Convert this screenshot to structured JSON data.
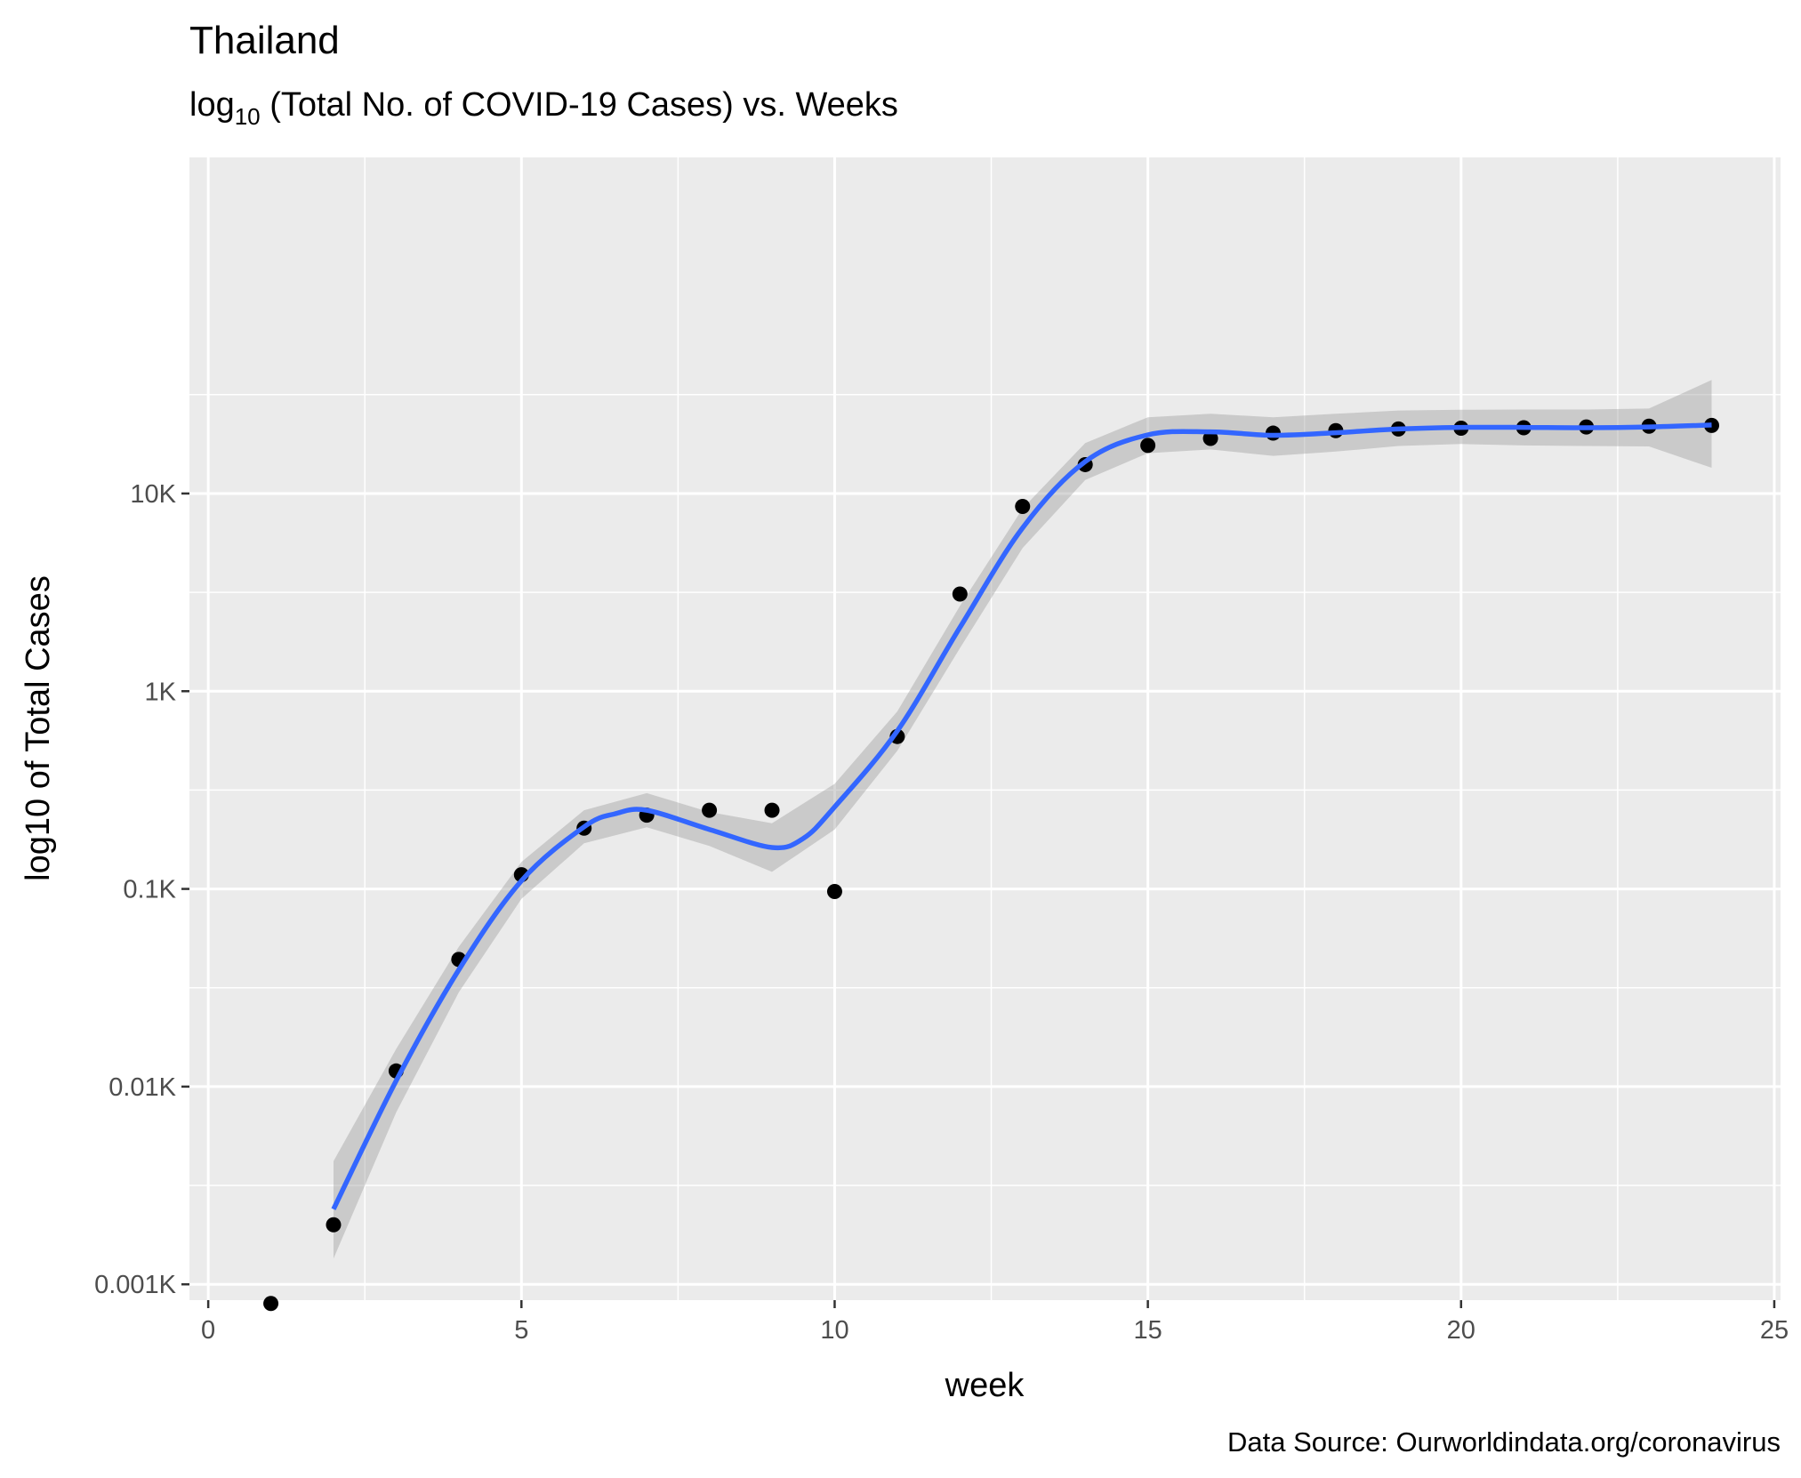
{
  "chart_data": {
    "type": "scatter",
    "title": "Thailand",
    "subtitle_prefix": "log",
    "subtitle_sub": "10",
    "subtitle_rest": " (Total No. of COVID-19 Cases) vs. Weeks",
    "xlabel": "week",
    "ylabel": "log10 of Total Cases",
    "caption": "Data Source: Ourworldindata.org/coronavirus",
    "xlim": [
      -0.3,
      25.1
    ],
    "ylim_log10": [
      -3.08,
      2.7
    ],
    "y_scale": "log10",
    "grid": true,
    "x_ticks": [
      {
        "value": 0,
        "label": "0"
      },
      {
        "value": 5,
        "label": "5"
      },
      {
        "value": 10,
        "label": "10"
      },
      {
        "value": 15,
        "label": "15"
      },
      {
        "value": 20,
        "label": "20"
      },
      {
        "value": 25,
        "label": "25"
      }
    ],
    "y_ticks": [
      {
        "value": 0.001,
        "label": "0.001K"
      },
      {
        "value": 0.01,
        "label": "0.01K"
      },
      {
        "value": 0.1,
        "label": "0.1K"
      },
      {
        "value": 1,
        "label": "1K"
      },
      {
        "value": 10,
        "label": "10K"
      }
    ],
    "points": [
      {
        "week": 1,
        "cases_k": 0.0008
      },
      {
        "week": 2,
        "cases_k": 0.002
      },
      {
        "week": 3,
        "cases_k": 0.012
      },
      {
        "week": 4,
        "cases_k": 0.044
      },
      {
        "week": 5,
        "cases_k": 0.118
      },
      {
        "week": 6,
        "cases_k": 0.203
      },
      {
        "week": 7,
        "cases_k": 0.236
      },
      {
        "week": 8,
        "cases_k": 0.25
      },
      {
        "week": 9,
        "cases_k": 0.25
      },
      {
        "week": 10,
        "cases_k": 0.097
      },
      {
        "week": 11,
        "cases_k": 0.59
      },
      {
        "week": 12,
        "cases_k": 3.1
      },
      {
        "week": 13,
        "cases_k": 8.6
      },
      {
        "week": 14,
        "cases_k": 14
      },
      {
        "week": 15,
        "cases_k": 17.5
      },
      {
        "week": 16,
        "cases_k": 19
      },
      {
        "week": 17,
        "cases_k": 20.2
      },
      {
        "week": 18,
        "cases_k": 20.8
      },
      {
        "week": 19,
        "cases_k": 21.2
      },
      {
        "week": 20,
        "cases_k": 21.4
      },
      {
        "week": 21,
        "cases_k": 21.5
      },
      {
        "week": 22,
        "cases_k": 21.7
      },
      {
        "week": 23,
        "cases_k": 21.9
      },
      {
        "week": 24,
        "cases_k": 22.1
      }
    ],
    "smooth_line": {
      "color": "#3366FF",
      "points": [
        {
          "week": 2,
          "cases_k": 0.0024
        },
        {
          "week": 3,
          "cases_k": 0.0107
        },
        {
          "week": 4,
          "cases_k": 0.039
        },
        {
          "week": 5,
          "cases_k": 0.11
        },
        {
          "week": 6,
          "cases_k": 0.206
        },
        {
          "week": 6.5,
          "cases_k": 0.24
        },
        {
          "week": 7,
          "cases_k": 0.25
        },
        {
          "week": 8,
          "cases_k": 0.2
        },
        {
          "week": 9,
          "cases_k": 0.162
        },
        {
          "week": 9.5,
          "cases_k": 0.18
        },
        {
          "week": 10,
          "cases_k": 0.26
        },
        {
          "week": 11,
          "cases_k": 0.63
        },
        {
          "week": 12,
          "cases_k": 2.1
        },
        {
          "week": 13,
          "cases_k": 6.7
        },
        {
          "week": 14,
          "cases_k": 14.5
        },
        {
          "week": 15,
          "cases_k": 19.8
        },
        {
          "week": 16,
          "cases_k": 20.5
        },
        {
          "week": 17,
          "cases_k": 19.7
        },
        {
          "week": 18,
          "cases_k": 20.3
        },
        {
          "week": 19,
          "cases_k": 21.2
        },
        {
          "week": 20,
          "cases_k": 21.6
        },
        {
          "week": 21,
          "cases_k": 21.6
        },
        {
          "week": 22,
          "cases_k": 21.5
        },
        {
          "week": 23,
          "cases_k": 21.7
        },
        {
          "week": 24,
          "cases_k": 22.2
        }
      ]
    },
    "confidence_band": {
      "color": "#999999",
      "points": [
        {
          "week": 2,
          "lower_k": 0.00135,
          "upper_k": 0.0042
        },
        {
          "week": 3,
          "lower_k": 0.0074,
          "upper_k": 0.0155
        },
        {
          "week": 4,
          "lower_k": 0.03,
          "upper_k": 0.051
        },
        {
          "week": 5,
          "lower_k": 0.089,
          "upper_k": 0.137
        },
        {
          "week": 6,
          "lower_k": 0.17,
          "upper_k": 0.25
        },
        {
          "week": 7,
          "lower_k": 0.205,
          "upper_k": 0.305
        },
        {
          "week": 8,
          "lower_k": 0.165,
          "upper_k": 0.245
        },
        {
          "week": 9,
          "lower_k": 0.122,
          "upper_k": 0.215
        },
        {
          "week": 10,
          "lower_k": 0.2,
          "upper_k": 0.34
        },
        {
          "week": 11,
          "lower_k": 0.5,
          "upper_k": 0.79
        },
        {
          "week": 12,
          "lower_k": 1.65,
          "upper_k": 2.7
        },
        {
          "week": 13,
          "lower_k": 5.3,
          "upper_k": 8.4
        },
        {
          "week": 14,
          "lower_k": 11.7,
          "upper_k": 18
        },
        {
          "week": 15,
          "lower_k": 16,
          "upper_k": 24.3
        },
        {
          "week": 16,
          "lower_k": 16.7,
          "upper_k": 25.3
        },
        {
          "week": 17,
          "lower_k": 15.5,
          "upper_k": 24.3
        },
        {
          "week": 18,
          "lower_k": 16.3,
          "upper_k": 25.3
        },
        {
          "week": 19,
          "lower_k": 17.4,
          "upper_k": 26.3
        },
        {
          "week": 20,
          "lower_k": 17.8,
          "upper_k": 26.5
        },
        {
          "week": 21,
          "lower_k": 17.5,
          "upper_k": 26.6
        },
        {
          "week": 22,
          "lower_k": 17.4,
          "upper_k": 26.6
        },
        {
          "week": 23,
          "lower_k": 17.3,
          "upper_k": 26.9
        },
        {
          "week": 24,
          "lower_k": 13.5,
          "upper_k": 37.5
        }
      ]
    }
  }
}
